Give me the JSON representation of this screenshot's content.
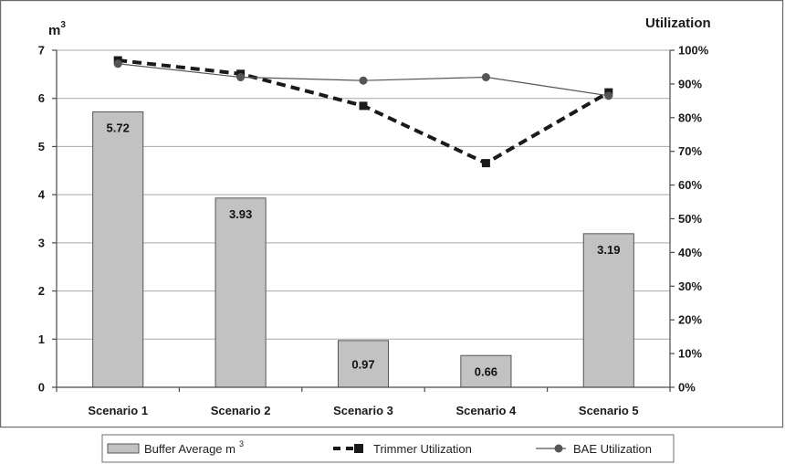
{
  "chart_data": {
    "type": "bar",
    "categories": [
      "Scenario 1",
      "Scenario 2",
      "Scenario 3",
      "Scenario 4",
      "Scenario 5"
    ],
    "ylabel": "m",
    "ylabel_superscript": "3",
    "y2label": "Utilization",
    "ylim": [
      0,
      7
    ],
    "y2lim": [
      0,
      100
    ],
    "y_ticks": [
      "0",
      "1",
      "2",
      "3",
      "4",
      "5",
      "6",
      "7"
    ],
    "y2_ticks": [
      "0%",
      "10%",
      "20%",
      "30%",
      "40%",
      "50%",
      "60%",
      "70%",
      "80%",
      "90%",
      "100%"
    ],
    "grid": true,
    "legend_position": "bottom",
    "series": [
      {
        "name": "Buffer Average m",
        "name_superscript": "3",
        "kind": "bar",
        "axis": "left",
        "values": [
          5.72,
          3.93,
          0.97,
          0.66,
          3.19
        ],
        "labels": [
          "5.72",
          "3.93",
          "0.97",
          "0.66",
          "3.19"
        ],
        "color": "#c2c2c2"
      },
      {
        "name": "Trimmer Utilization",
        "kind": "line",
        "style": "dashed",
        "marker": "square",
        "axis": "right",
        "values": [
          97,
          93,
          83.5,
          66.5,
          87.5
        ],
        "color": "#1a1a1a"
      },
      {
        "name": "BAE Utilization",
        "kind": "line",
        "style": "solid",
        "marker": "circle",
        "axis": "right",
        "values": [
          96,
          92,
          91,
          92,
          86.5
        ],
        "color": "#555555"
      }
    ]
  }
}
